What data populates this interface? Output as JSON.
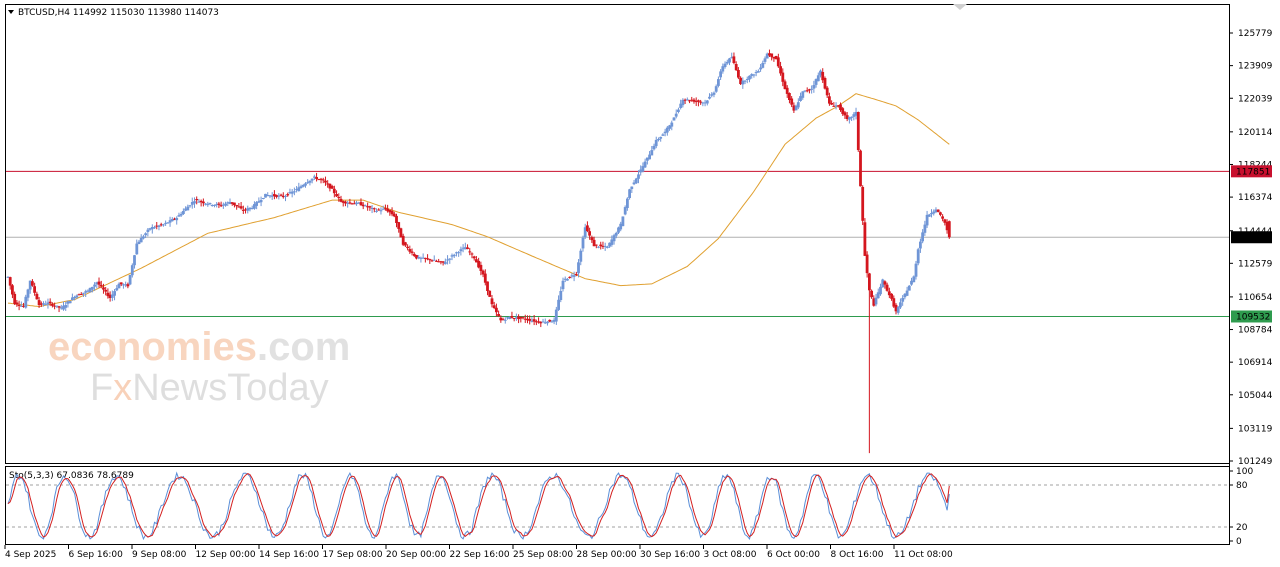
{
  "header": {
    "symbol": "BTCUSD,H4",
    "ohlc": "114992 115030 113980 114073"
  },
  "watermark": {
    "line1_a": "economies",
    "line1_b": ".com",
    "line2_a": "F",
    "line2_b": "x",
    "line2_c": "NewsToday"
  },
  "colors": {
    "bull": "#6f95d6",
    "bear": "#d4161e",
    "ma": "#e0a030",
    "resistance": "#c8102e",
    "support": "#2e9b4e",
    "current": "#b0b0b0",
    "stoch_main": "#5a8fd8",
    "stoch_signal": "#d42020"
  },
  "chart_data": {
    "type": "candlestick",
    "symbol": "BTCUSD",
    "timeframe": "H4",
    "price_axis_ticks": [
      "125779",
      "123909",
      "122039",
      "120114",
      "118244",
      "116374",
      "114444",
      "112579",
      "110654",
      "108784",
      "106914",
      "105044",
      "103119",
      "101249"
    ],
    "price_range": [
      101249,
      125779
    ],
    "time_axis_labels": [
      "4 Sep 2025",
      "6 Sep 16:00",
      "9 Sep 08:00",
      "12 Sep 00:00",
      "14 Sep 16:00",
      "17 Sep 08:00",
      "20 Sep 00:00",
      "22 Sep 16:00",
      "25 Sep 08:00",
      "28 Sep 00:00",
      "30 Sep 16:00",
      "3 Oct 08:00",
      "6 Oct 00:00",
      "8 Oct 16:00",
      "11 Oct 08:00"
    ],
    "levels": {
      "resistance": 117851,
      "support": 109532,
      "current": 114073
    },
    "level_labels": {
      "resistance": "117851",
      "support": "109532",
      "current": "114073"
    },
    "price_keypoints": [
      [
        0,
        111800
      ],
      [
        3,
        110300
      ],
      [
        7,
        110100
      ],
      [
        10,
        111600
      ],
      [
        14,
        110200
      ],
      [
        18,
        110300
      ],
      [
        24,
        110000
      ],
      [
        30,
        110700
      ],
      [
        36,
        111000
      ],
      [
        40,
        111500
      ],
      [
        46,
        110600
      ],
      [
        50,
        111400
      ],
      [
        54,
        111300
      ],
      [
        58,
        113700
      ],
      [
        64,
        114600
      ],
      [
        70,
        114800
      ],
      [
        76,
        115200
      ],
      [
        84,
        116200
      ],
      [
        90,
        116000
      ],
      [
        96,
        115900
      ],
      [
        100,
        116100
      ],
      [
        106,
        115600
      ],
      [
        110,
        115800
      ],
      [
        116,
        116500
      ],
      [
        124,
        116400
      ],
      [
        130,
        116800
      ],
      [
        134,
        117200
      ],
      [
        138,
        117500
      ],
      [
        142,
        117300
      ],
      [
        146,
        116800
      ],
      [
        150,
        116100
      ],
      [
        158,
        116000
      ],
      [
        166,
        115600
      ],
      [
        170,
        115700
      ],
      [
        174,
        115300
      ],
      [
        178,
        113700
      ],
      [
        184,
        112900
      ],
      [
        190,
        112800
      ],
      [
        196,
        112600
      ],
      [
        202,
        113200
      ],
      [
        206,
        113500
      ],
      [
        210,
        112900
      ],
      [
        214,
        111900
      ],
      [
        218,
        110200
      ],
      [
        222,
        109300
      ],
      [
        226,
        109500
      ],
      [
        232,
        109400
      ],
      [
        240,
        109200
      ],
      [
        246,
        109300
      ],
      [
        250,
        111600
      ],
      [
        256,
        112000
      ],
      [
        260,
        114700
      ],
      [
        264,
        113600
      ],
      [
        270,
        113500
      ],
      [
        276,
        114800
      ],
      [
        280,
        116800
      ],
      [
        284,
        117700
      ],
      [
        288,
        118600
      ],
      [
        292,
        119600
      ],
      [
        296,
        120100
      ],
      [
        300,
        120900
      ],
      [
        304,
        122000
      ],
      [
        308,
        121900
      ],
      [
        314,
        121800
      ],
      [
        318,
        122400
      ],
      [
        322,
        123900
      ],
      [
        326,
        124400
      ],
      [
        330,
        122900
      ],
      [
        334,
        123300
      ],
      [
        338,
        123600
      ],
      [
        342,
        124600
      ],
      [
        346,
        124300
      ],
      [
        350,
        122600
      ],
      [
        354,
        121300
      ],
      [
        358,
        122400
      ],
      [
        362,
        122600
      ],
      [
        366,
        123600
      ],
      [
        370,
        121700
      ],
      [
        374,
        121600
      ],
      [
        378,
        120800
      ],
      [
        380,
        121000
      ],
      [
        382,
        121200
      ],
      [
        384,
        117000
      ],
      [
        386,
        113000
      ],
      [
        388,
        111000
      ],
      [
        390,
        110200
      ],
      [
        394,
        111600
      ],
      [
        398,
        110500
      ],
      [
        400,
        109800
      ],
      [
        402,
        110300
      ],
      [
        404,
        110800
      ],
      [
        408,
        111800
      ],
      [
        410,
        113400
      ],
      [
        414,
        115300
      ],
      [
        418,
        115700
      ],
      [
        422,
        114900
      ],
      [
        424,
        114073
      ]
    ],
    "ma_keypoints": [
      [
        0,
        110300
      ],
      [
        14,
        110100
      ],
      [
        30,
        110500
      ],
      [
        60,
        112300
      ],
      [
        90,
        114300
      ],
      [
        120,
        115200
      ],
      [
        146,
        116200
      ],
      [
        160,
        116200
      ],
      [
        176,
        115500
      ],
      [
        200,
        114800
      ],
      [
        216,
        114100
      ],
      [
        236,
        113000
      ],
      [
        260,
        111700
      ],
      [
        276,
        111300
      ],
      [
        290,
        111400
      ],
      [
        306,
        112400
      ],
      [
        320,
        114000
      ],
      [
        336,
        116700
      ],
      [
        350,
        119400
      ],
      [
        364,
        120900
      ],
      [
        374,
        121600
      ],
      [
        382,
        122300
      ],
      [
        390,
        122000
      ],
      [
        400,
        121600
      ],
      [
        410,
        120800
      ],
      [
        420,
        119800
      ],
      [
        424,
        119400
      ]
    ],
    "spike": {
      "index": 388,
      "high": 111000,
      "low": 101700
    },
    "stochastic": {
      "label": "Sto(5,3,3) 67.0836 78.6789",
      "k": 67.0836,
      "d": 78.6789,
      "levels": [
        20,
        80
      ],
      "axis_ticks": [
        "100",
        "80",
        "20",
        "0"
      ],
      "range": [
        0,
        100
      ]
    }
  }
}
